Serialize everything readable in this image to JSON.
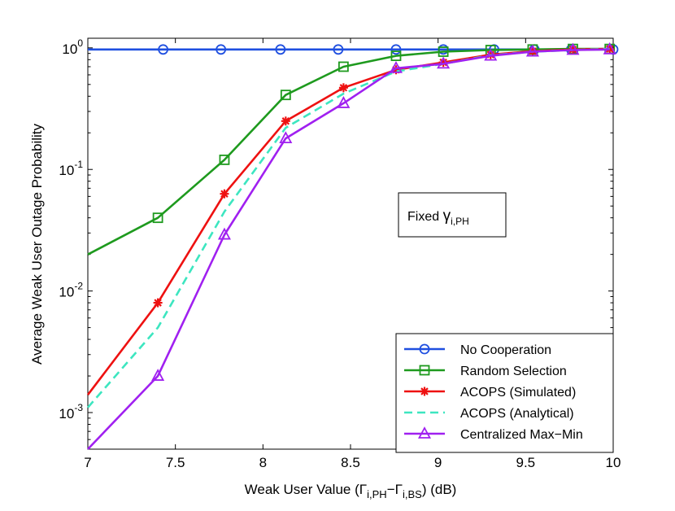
{
  "chart_data": {
    "type": "line",
    "title": "",
    "xlabel": {
      "prefix": "Weak User Value (",
      "g1": "Γ",
      "s1": "i,PH",
      "minus": "−",
      "g2": "Γ",
      "s2": "i,BS",
      "suffix": ") (dB)"
    },
    "ylabel": "Average Weak User Outage Probability",
    "xlim": [
      7,
      10
    ],
    "ylim": [
      0.0005,
      1.2
    ],
    "yscale": "log",
    "x_ticks": [
      "7",
      "7.5",
      "8",
      "8.5",
      "9",
      "9.5",
      "10"
    ],
    "y_ticks": [
      {
        "base": "10",
        "exp": "0",
        "value": 1
      },
      {
        "base": "10",
        "exp": "-1",
        "value": 0.1
      },
      {
        "base": "10",
        "exp": "-2",
        "value": 0.01
      },
      {
        "base": "10",
        "exp": "-3",
        "value": 0.001
      }
    ],
    "annotation": {
      "text": "Fixed ",
      "sym": "γ",
      "sub": "i,PH"
    },
    "series": [
      {
        "name": "No Cooperation",
        "color": "#1f4fe0",
        "dash": "solid",
        "marker": "circle",
        "x": [
          7.0,
          7.43,
          7.76,
          8.1,
          8.43,
          8.76,
          9.03,
          9.32,
          9.55,
          9.76,
          10.0
        ],
        "y": [
          0.97,
          0.97,
          0.97,
          0.97,
          0.97,
          0.97,
          0.97,
          0.97,
          0.97,
          0.97,
          0.97
        ],
        "marker_x": [
          7.43,
          7.76,
          8.1,
          8.43,
          8.76,
          9.03,
          9.32,
          9.55,
          9.76,
          10.0
        ]
      },
      {
        "name": "Random Selection",
        "color": "#1e9a1e",
        "dash": "solid",
        "marker": "square",
        "x": [
          7.0,
          7.4,
          7.78,
          8.13,
          8.46,
          8.76,
          9.03,
          9.3,
          9.54,
          9.77,
          9.98
        ],
        "y": [
          0.02,
          0.04,
          0.12,
          0.41,
          0.7,
          0.86,
          0.93,
          0.96,
          0.97,
          0.98,
          0.98
        ],
        "marker_x": [
          7.4,
          7.78,
          8.13,
          8.46,
          8.76,
          9.03,
          9.3,
          9.54,
          9.77,
          9.98
        ]
      },
      {
        "name": "ACOPS (Simulated)",
        "color": "#ee1111",
        "dash": "solid",
        "marker": "star",
        "x": [
          7.0,
          7.4,
          7.78,
          8.13,
          8.46,
          8.76,
          9.03,
          9.3,
          9.54,
          9.77,
          9.98
        ],
        "y": [
          0.0014,
          0.008,
          0.063,
          0.25,
          0.47,
          0.66,
          0.76,
          0.88,
          0.94,
          0.97,
          0.98
        ],
        "marker_x": [
          7.4,
          7.78,
          8.13,
          8.46,
          8.76,
          9.03,
          9.3,
          9.54,
          9.77,
          9.98
        ]
      },
      {
        "name": "ACOPS (Analytical)",
        "color": "#3de6c0",
        "dash": "dashed",
        "marker": "none",
        "x": [
          7.0,
          7.4,
          7.78,
          8.13,
          8.46,
          8.76,
          9.03,
          9.3,
          9.54,
          9.77,
          9.98
        ],
        "y": [
          0.0011,
          0.005,
          0.045,
          0.22,
          0.42,
          0.64,
          0.74,
          0.87,
          0.93,
          0.96,
          0.98
        ],
        "marker_x": []
      },
      {
        "name": "Centralized Max−Min",
        "color": "#a020f0",
        "dash": "solid",
        "marker": "triangle",
        "x": [
          7.0,
          7.4,
          7.78,
          8.13,
          8.46,
          8.76,
          9.03,
          9.3,
          9.54,
          9.77,
          9.98
        ],
        "y": [
          0.0005,
          0.002,
          0.029,
          0.18,
          0.35,
          0.68,
          0.74,
          0.86,
          0.93,
          0.96,
          0.97
        ],
        "marker_x": [
          7.4,
          7.78,
          8.13,
          8.46,
          8.76,
          9.03,
          9.3,
          9.54,
          9.77,
          9.98
        ]
      }
    ],
    "legend_position": "bottom-right"
  }
}
